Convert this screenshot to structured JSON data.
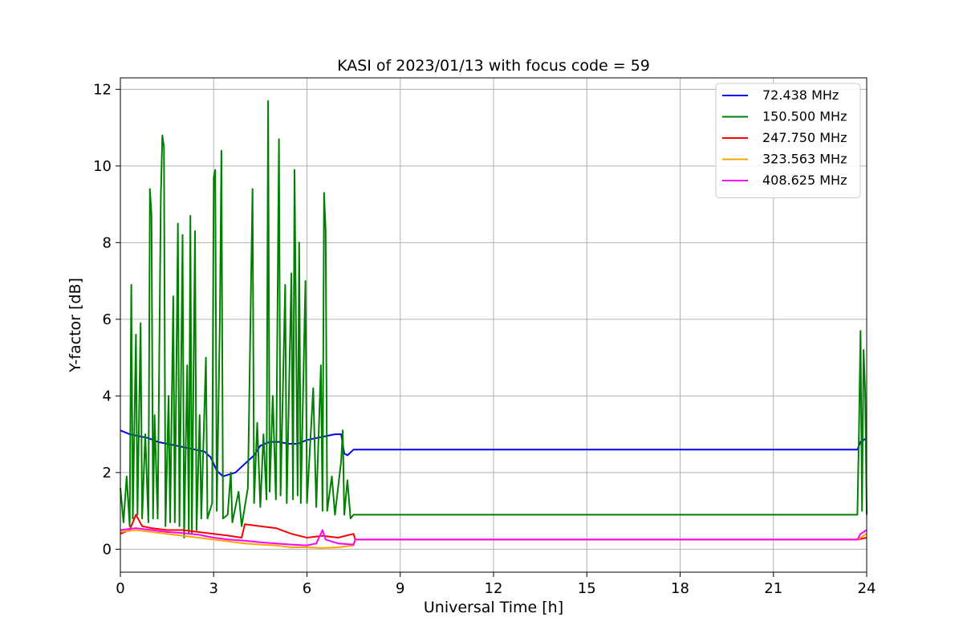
{
  "chart_data": {
    "type": "line",
    "title": "KASI of 2023/01/13 with focus code = 59",
    "xlabel": "Universal Time [h]",
    "ylabel": "Y-factor [dB]",
    "xlim": [
      0,
      24
    ],
    "ylim": [
      -0.6,
      12.3
    ],
    "xticks": [
      0,
      3,
      6,
      9,
      12,
      15,
      18,
      21,
      24
    ],
    "yticks": [
      0,
      2,
      4,
      6,
      8,
      10,
      12
    ],
    "grid": true,
    "legend_position": "top-right",
    "series": [
      {
        "name": " 72.438 MHz",
        "color": "#0000ff",
        "points": [
          [
            0,
            3.1
          ],
          [
            0.3,
            3.0
          ],
          [
            0.6,
            2.95
          ],
          [
            0.9,
            2.9
          ],
          [
            1.2,
            2.8
          ],
          [
            1.5,
            2.75
          ],
          [
            1.8,
            2.7
          ],
          [
            2.1,
            2.65
          ],
          [
            2.4,
            2.6
          ],
          [
            2.7,
            2.55
          ],
          [
            2.9,
            2.4
          ],
          [
            3.1,
            2.05
          ],
          [
            3.3,
            1.9
          ],
          [
            3.5,
            1.95
          ],
          [
            3.7,
            2.0
          ],
          [
            3.9,
            2.15
          ],
          [
            4.1,
            2.3
          ],
          [
            4.3,
            2.45
          ],
          [
            4.5,
            2.7
          ],
          [
            4.8,
            2.8
          ],
          [
            5.1,
            2.8
          ],
          [
            5.4,
            2.75
          ],
          [
            5.7,
            2.75
          ],
          [
            6.0,
            2.85
          ],
          [
            6.3,
            2.9
          ],
          [
            6.6,
            2.95
          ],
          [
            6.9,
            3.0
          ],
          [
            7.1,
            3.0
          ],
          [
            7.2,
            2.5
          ],
          [
            7.3,
            2.45
          ],
          [
            7.5,
            2.6
          ],
          [
            23.7,
            2.6
          ],
          [
            23.8,
            2.8
          ],
          [
            24,
            2.9
          ]
        ]
      },
      {
        "name": "150.500 MHz",
        "color": "#008000",
        "points": [
          [
            0,
            1.6
          ],
          [
            0.1,
            0.7
          ],
          [
            0.2,
            1.9
          ],
          [
            0.3,
            0.6
          ],
          [
            0.35,
            6.9
          ],
          [
            0.4,
            0.8
          ],
          [
            0.5,
            5.6
          ],
          [
            0.55,
            0.9
          ],
          [
            0.65,
            5.9
          ],
          [
            0.7,
            0.8
          ],
          [
            0.8,
            3.0
          ],
          [
            0.9,
            0.7
          ],
          [
            0.95,
            9.4
          ],
          [
            1.0,
            8.7
          ],
          [
            1.05,
            0.8
          ],
          [
            1.1,
            3.5
          ],
          [
            1.2,
            0.8
          ],
          [
            1.3,
            9.2
          ],
          [
            1.35,
            10.8
          ],
          [
            1.4,
            10.5
          ],
          [
            1.45,
            0.6
          ],
          [
            1.55,
            4.0
          ],
          [
            1.6,
            0.7
          ],
          [
            1.7,
            6.6
          ],
          [
            1.75,
            0.7
          ],
          [
            1.85,
            8.5
          ],
          [
            1.9,
            0.6
          ],
          [
            2.0,
            8.2
          ],
          [
            2.05,
            0.3
          ],
          [
            2.15,
            4.8
          ],
          [
            2.2,
            0.4
          ],
          [
            2.25,
            8.7
          ],
          [
            2.3,
            0.4
          ],
          [
            2.4,
            8.3
          ],
          [
            2.45,
            0.5
          ],
          [
            2.55,
            3.5
          ],
          [
            2.6,
            0.8
          ],
          [
            2.75,
            5.0
          ],
          [
            2.8,
            0.8
          ],
          [
            2.95,
            1.2
          ],
          [
            3.0,
            9.7
          ],
          [
            3.05,
            9.9
          ],
          [
            3.1,
            1.0
          ],
          [
            3.2,
            6.0
          ],
          [
            3.25,
            10.4
          ],
          [
            3.3,
            0.8
          ],
          [
            3.45,
            0.9
          ],
          [
            3.55,
            2.0
          ],
          [
            3.6,
            0.7
          ],
          [
            3.8,
            1.5
          ],
          [
            3.9,
            0.6
          ],
          [
            4.1,
            1.6
          ],
          [
            4.2,
            6.9
          ],
          [
            4.25,
            9.4
          ],
          [
            4.3,
            1.2
          ],
          [
            4.4,
            3.3
          ],
          [
            4.5,
            1.1
          ],
          [
            4.6,
            3.0
          ],
          [
            4.7,
            1.3
          ],
          [
            4.75,
            11.7
          ],
          [
            4.8,
            1.5
          ],
          [
            4.9,
            4.0
          ],
          [
            5.0,
            1.3
          ],
          [
            5.1,
            10.7
          ],
          [
            5.15,
            1.4
          ],
          [
            5.3,
            6.9
          ],
          [
            5.35,
            1.2
          ],
          [
            5.5,
            7.2
          ],
          [
            5.55,
            1.3
          ],
          [
            5.6,
            9.9
          ],
          [
            5.7,
            1.4
          ],
          [
            5.75,
            8.0
          ],
          [
            5.8,
            1.2
          ],
          [
            5.95,
            7.0
          ],
          [
            6.0,
            1.2
          ],
          [
            6.2,
            4.2
          ],
          [
            6.3,
            1.1
          ],
          [
            6.45,
            4.8
          ],
          [
            6.5,
            1.0
          ],
          [
            6.55,
            9.3
          ],
          [
            6.6,
            8.3
          ],
          [
            6.65,
            1.0
          ],
          [
            6.8,
            1.9
          ],
          [
            6.9,
            0.9
          ],
          [
            7.1,
            2.3
          ],
          [
            7.15,
            3.1
          ],
          [
            7.2,
            0.9
          ],
          [
            7.3,
            1.8
          ],
          [
            7.4,
            0.8
          ],
          [
            7.5,
            0.9
          ],
          [
            23.7,
            0.9
          ],
          [
            23.75,
            3.0
          ],
          [
            23.8,
            5.7
          ],
          [
            23.85,
            1.0
          ],
          [
            23.9,
            5.2
          ],
          [
            23.95,
            4.1
          ],
          [
            24,
            0.9
          ]
        ]
      },
      {
        "name": "247.750 MHz",
        "color": "#ff0000",
        "points": [
          [
            0,
            0.4
          ],
          [
            0.3,
            0.5
          ],
          [
            0.5,
            0.9
          ],
          [
            0.7,
            0.6
          ],
          [
            1.0,
            0.55
          ],
          [
            1.5,
            0.5
          ],
          [
            2.0,
            0.5
          ],
          [
            2.5,
            0.45
          ],
          [
            3.0,
            0.4
          ],
          [
            3.5,
            0.35
          ],
          [
            3.9,
            0.3
          ],
          [
            4.0,
            0.65
          ],
          [
            4.5,
            0.6
          ],
          [
            5.0,
            0.55
          ],
          [
            5.5,
            0.4
          ],
          [
            6.0,
            0.3
          ],
          [
            6.5,
            0.35
          ],
          [
            7.0,
            0.3
          ],
          [
            7.5,
            0.4
          ],
          [
            7.55,
            0.25
          ],
          [
            23.7,
            0.25
          ],
          [
            24,
            0.3
          ]
        ]
      },
      {
        "name": "323.563 MHz",
        "color": "#ffa500",
        "points": [
          [
            0,
            0.45
          ],
          [
            0.5,
            0.5
          ],
          [
            1.0,
            0.45
          ],
          [
            1.5,
            0.4
          ],
          [
            2.0,
            0.35
          ],
          [
            2.5,
            0.3
          ],
          [
            3.0,
            0.25
          ],
          [
            3.5,
            0.2
          ],
          [
            4.0,
            0.15
          ],
          [
            4.5,
            0.12
          ],
          [
            5.0,
            0.1
          ],
          [
            5.5,
            0.05
          ],
          [
            6.0,
            0.05
          ],
          [
            6.5,
            0.03
          ],
          [
            7.0,
            0.05
          ],
          [
            7.5,
            0.1
          ],
          [
            7.55,
            0.25
          ],
          [
            23.7,
            0.25
          ],
          [
            24,
            0.4
          ]
        ]
      },
      {
        "name": "408.625 MHz",
        "color": "#ff00ff",
        "points": [
          [
            0,
            0.5
          ],
          [
            0.5,
            0.55
          ],
          [
            1.0,
            0.5
          ],
          [
            1.5,
            0.45
          ],
          [
            2.0,
            0.42
          ],
          [
            2.5,
            0.38
          ],
          [
            3.0,
            0.3
          ],
          [
            3.5,
            0.25
          ],
          [
            4.0,
            0.22
          ],
          [
            4.5,
            0.18
          ],
          [
            5.0,
            0.15
          ],
          [
            5.5,
            0.12
          ],
          [
            6.0,
            0.1
          ],
          [
            6.3,
            0.15
          ],
          [
            6.5,
            0.5
          ],
          [
            6.6,
            0.25
          ],
          [
            7.0,
            0.15
          ],
          [
            7.5,
            0.12
          ],
          [
            7.55,
            0.25
          ],
          [
            23.7,
            0.25
          ],
          [
            23.8,
            0.4
          ],
          [
            24,
            0.5
          ]
        ]
      }
    ]
  }
}
